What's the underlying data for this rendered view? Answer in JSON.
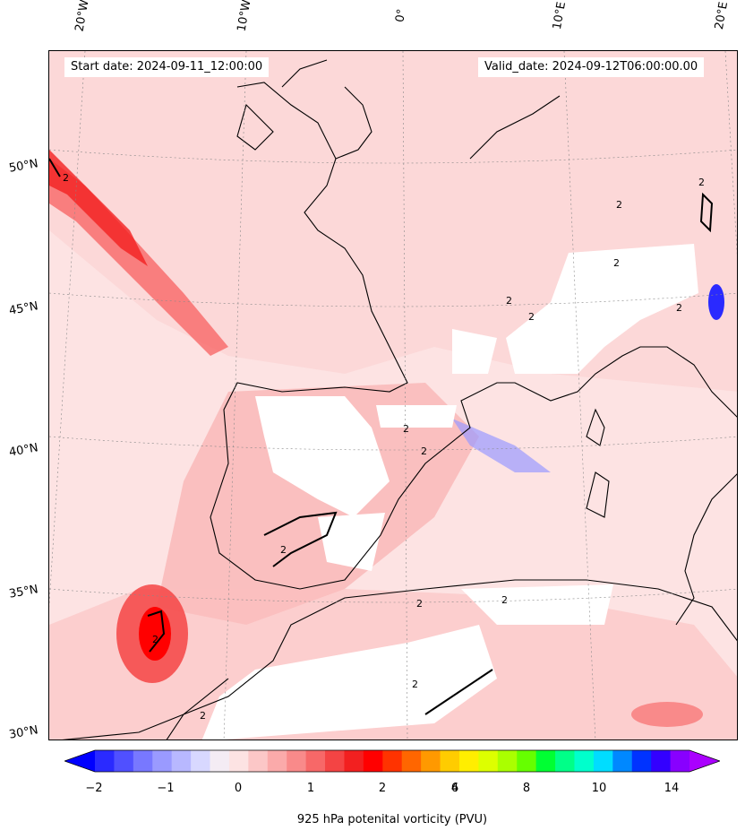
{
  "map": {
    "start_date": "Start date: 2024-09-11_12:00:00",
    "valid_date": "Valid_date: 2024-09-12T06:00:00.00",
    "longitude_labels": [
      "20°W",
      "10°W",
      "0°",
      "10°E",
      "20°E"
    ],
    "latitude_labels": [
      "50°N",
      "45°N",
      "40°N",
      "35°N",
      "30°N"
    ],
    "contour_label": "2"
  },
  "colorbar": {
    "label": "925 hPa potenital vorticity (PVU)",
    "tick_labels": [
      "−2",
      "−1",
      "0",
      "1",
      "2",
      "4",
      "6",
      "8",
      "10",
      "14"
    ],
    "colors": [
      "#0000ff",
      "#2a2aff",
      "#5050ff",
      "#7878ff",
      "#9a9aff",
      "#b8b8ff",
      "#d8d8ff",
      "#f4ecf4",
      "#fde3e3",
      "#fcc7c7",
      "#fbaaaa",
      "#f98a8a",
      "#f76868",
      "#f44444",
      "#f22020",
      "#ff0000",
      "#ff3300",
      "#ff6600",
      "#ff9900",
      "#ffcc00",
      "#ffee00",
      "#ddff00",
      "#aaff00",
      "#66ff00",
      "#00ff33",
      "#00ff88",
      "#00ffcc",
      "#00ddff",
      "#0088ff",
      "#0033ff",
      "#3300ff",
      "#8800ff",
      "#aa00ff"
    ]
  }
}
